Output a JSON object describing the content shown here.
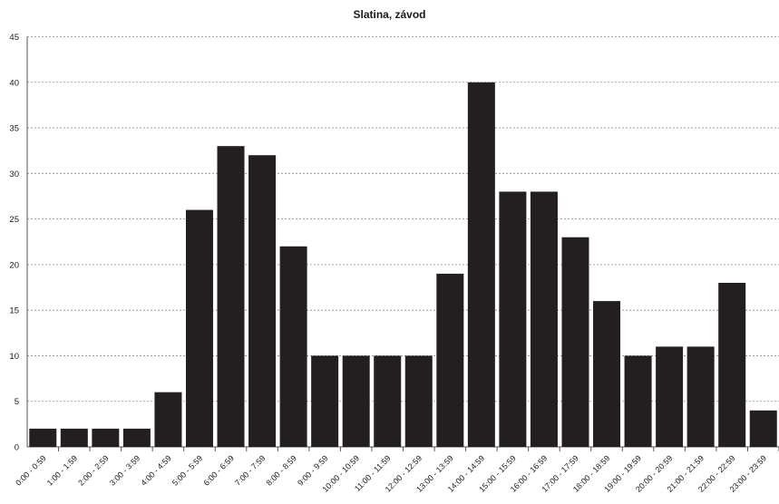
{
  "chart_data": {
    "type": "bar",
    "title": "Slatina, závod",
    "xlabel": "",
    "ylabel": "",
    "ylim": [
      0,
      45
    ],
    "yticks": [
      "0",
      "5",
      "10",
      "15",
      "20",
      "25",
      "30",
      "35",
      "40",
      "45"
    ],
    "grid": true,
    "legend": "none",
    "bar_color": "#231f20",
    "categories": [
      "0:00 - 0:59",
      "1:00 - 1:59",
      "2:00 - 2:59",
      "3:00 - 3:59",
      "4:00 - 4:59",
      "5:00 - 5:59",
      "6:00 - 6:59",
      "7:00 - 7:59",
      "8:00 - 8:59",
      "9:00 - 9:59",
      "10:00 - 10:59",
      "11:00 - 11:59",
      "12:00 - 12:59",
      "13:00 - 13:59",
      "14:00 - 14:59",
      "15:00 - 15:59",
      "16:00 - 16:59",
      "17:00 - 17:59",
      "18:00 - 18:59",
      "19:00 - 19:59",
      "20:00 - 20:59",
      "21:00 - 21:59",
      "22:00 - 22:59",
      "23:00 - 23:59"
    ],
    "values": [
      2,
      2,
      2,
      2,
      6,
      26,
      33,
      32,
      22,
      10,
      10,
      10,
      10,
      19,
      40,
      28,
      28,
      23,
      16,
      10,
      11,
      11,
      18,
      4
    ]
  }
}
